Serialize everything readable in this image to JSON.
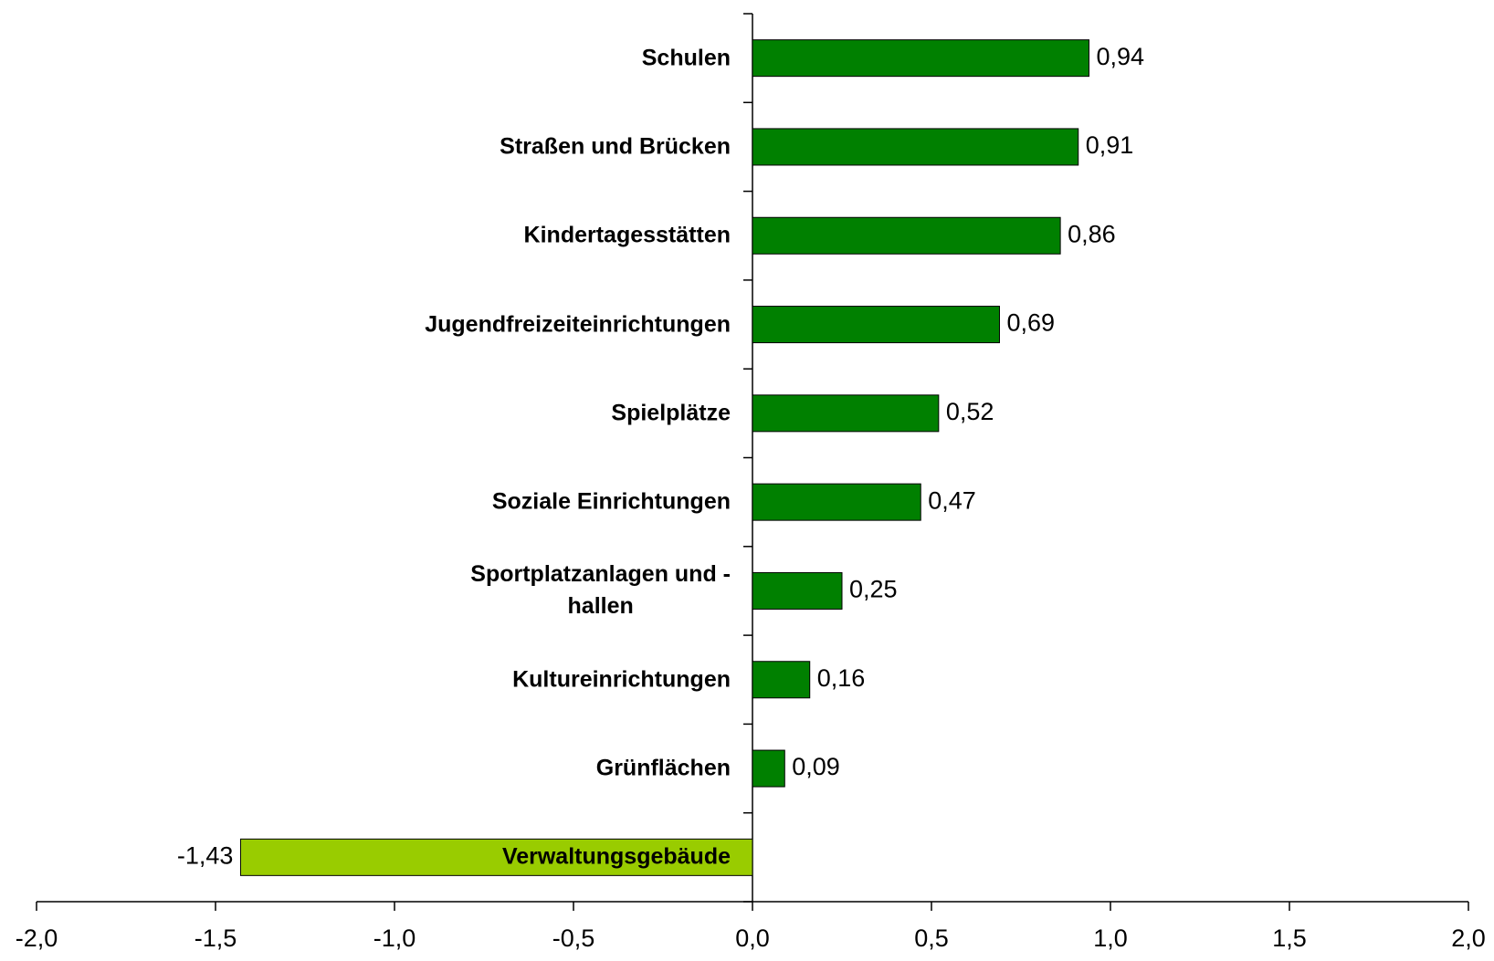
{
  "chart_data": {
    "type": "bar",
    "orientation": "horizontal",
    "categories": [
      "Schulen",
      "Straßen und Brücken",
      "Kindertagesstätten",
      "Jugendfreizeiteinrichtungen",
      "Spielplätze",
      "Soziale Einrichtungen",
      "Sportplatzanlagen und -\nhallen",
      "Kultureinrichtungen",
      "Grünflächen",
      "Verwaltungsgebäude"
    ],
    "values": [
      0.94,
      0.91,
      0.86,
      0.69,
      0.52,
      0.47,
      0.25,
      0.16,
      0.09,
      -1.43
    ],
    "value_labels": [
      "0,94",
      "0,91",
      "0,86",
      "0,69",
      "0,52",
      "0,47",
      "0,25",
      "0,16",
      "0,09",
      "-1,43"
    ],
    "colors": [
      "#008000",
      "#008000",
      "#008000",
      "#008000",
      "#008000",
      "#008000",
      "#008000",
      "#008000",
      "#008000",
      "#99cc00"
    ],
    "xlim": [
      -2,
      2
    ],
    "xticks": [
      {
        "value": -2,
        "label": "-2,0"
      },
      {
        "value": -1.5,
        "label": "-1,5"
      },
      {
        "value": -1,
        "label": "-1,0"
      },
      {
        "value": -0.5,
        "label": "-0,5"
      },
      {
        "value": 0,
        "label": "0,0"
      },
      {
        "value": 0.5,
        "label": "0,5"
      },
      {
        "value": 1,
        "label": "1,0"
      },
      {
        "value": 1.5,
        "label": "1,5"
      },
      {
        "value": 2,
        "label": "2,0"
      }
    ],
    "grid": false
  }
}
